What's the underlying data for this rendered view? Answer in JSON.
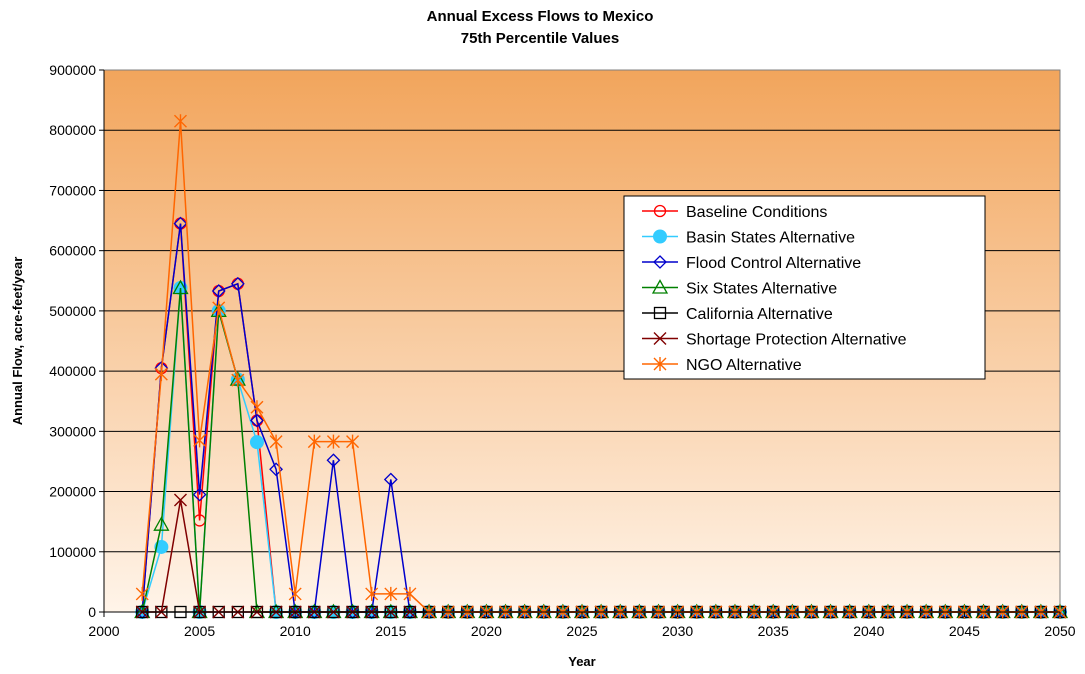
{
  "chart_data": {
    "type": "line",
    "title": "Annual Excess Flows to Mexico",
    "subtitle": "75th Percentile Values",
    "xlabel": "Year",
    "ylabel": "Annual Flow, acre-feet/year",
    "xlim": [
      2000,
      2050
    ],
    "ylim": [
      0,
      900000
    ],
    "xticks": [
      "2000",
      "2005",
      "2010",
      "2015",
      "2020",
      "2025",
      "2030",
      "2035",
      "2040",
      "2045",
      "2050"
    ],
    "yticks": [
      "0",
      "100000",
      "200000",
      "300000",
      "400000",
      "500000",
      "600000",
      "700000",
      "800000",
      "900000"
    ],
    "grid": "horizontal",
    "legend_position": "right",
    "plot_background": [
      "#f2a55c",
      "#fff4e9"
    ],
    "x": [
      2002,
      2003,
      2004,
      2005,
      2006,
      2007,
      2008,
      2009,
      2010,
      2011,
      2012,
      2013,
      2014,
      2015,
      2016,
      2017,
      2018,
      2019,
      2020,
      2021,
      2022,
      2023,
      2024,
      2025,
      2026,
      2027,
      2028,
      2029,
      2030,
      2031,
      2032,
      2033,
      2034,
      2035,
      2036,
      2037,
      2038,
      2039,
      2040,
      2041,
      2042,
      2043,
      2044,
      2045,
      2046,
      2047,
      2048,
      2049,
      2050
    ],
    "series": [
      {
        "name": "Baseline Conditions",
        "color": "#ff0000",
        "marker": "circle-open",
        "values": [
          0,
          405000,
          645000,
          152000,
          533000,
          545000,
          318000,
          0,
          0,
          0,
          0,
          0,
          0,
          0,
          0,
          0,
          0,
          0,
          0,
          0,
          0,
          0,
          0,
          0,
          0,
          0,
          0,
          0,
          0,
          0,
          0,
          0,
          0,
          0,
          0,
          0,
          0,
          0,
          0,
          0,
          0,
          0,
          0,
          0,
          0,
          0,
          0,
          0,
          0
        ]
      },
      {
        "name": "Basin States Alternative",
        "color": "#33ccff",
        "marker": "circle-filled",
        "values": [
          0,
          108000,
          538000,
          0,
          500000,
          386000,
          282000,
          0,
          0,
          0,
          0,
          0,
          0,
          0,
          0,
          0,
          0,
          0,
          0,
          0,
          0,
          0,
          0,
          0,
          0,
          0,
          0,
          0,
          0,
          0,
          0,
          0,
          0,
          0,
          0,
          0,
          0,
          0,
          0,
          0,
          0,
          0,
          0,
          0,
          0,
          0,
          0,
          0,
          0
        ]
      },
      {
        "name": "Flood Control Alternative",
        "color": "#0000cc",
        "marker": "diamond-open",
        "values": [
          0,
          405000,
          645000,
          195000,
          533000,
          545000,
          318000,
          237000,
          0,
          0,
          252000,
          0,
          0,
          220000,
          0,
          0,
          0,
          0,
          0,
          0,
          0,
          0,
          0,
          0,
          0,
          0,
          0,
          0,
          0,
          0,
          0,
          0,
          0,
          0,
          0,
          0,
          0,
          0,
          0,
          0,
          0,
          0,
          0,
          0,
          0,
          0,
          0,
          0,
          0
        ]
      },
      {
        "name": "Six States Alternative",
        "color": "#008000",
        "marker": "triangle-open",
        "values": [
          0,
          145000,
          538000,
          0,
          500000,
          386000,
          0,
          0,
          0,
          0,
          0,
          0,
          0,
          0,
          0,
          0,
          0,
          0,
          0,
          0,
          0,
          0,
          0,
          0,
          0,
          0,
          0,
          0,
          0,
          0,
          0,
          0,
          0,
          0,
          0,
          0,
          0,
          0,
          0,
          0,
          0,
          0,
          0,
          0,
          0,
          0,
          0,
          0,
          0
        ]
      },
      {
        "name": "California Alternative",
        "color": "#000000",
        "marker": "square-open",
        "values": [
          0,
          0,
          0,
          0,
          0,
          0,
          0,
          0,
          0,
          0,
          0,
          0,
          0,
          0,
          0,
          0,
          0,
          0,
          0,
          0,
          0,
          0,
          0,
          0,
          0,
          0,
          0,
          0,
          0,
          0,
          0,
          0,
          0,
          0,
          0,
          0,
          0,
          0,
          0,
          0,
          0,
          0,
          0,
          0,
          0,
          0,
          0,
          0,
          0
        ]
      },
      {
        "name": "Shortage Protection Alternative",
        "color": "#800000",
        "marker": "x",
        "values": [
          0,
          0,
          186000,
          0,
          0,
          0,
          0,
          0,
          0,
          0,
          0,
          0,
          0,
          0,
          0,
          0,
          0,
          0,
          0,
          0,
          0,
          0,
          0,
          0,
          0,
          0,
          0,
          0,
          0,
          0,
          0,
          0,
          0,
          0,
          0,
          0,
          0,
          0,
          0,
          0,
          0,
          0,
          0,
          0,
          0,
          0,
          0,
          0,
          0
        ]
      },
      {
        "name": "NGO Alternative",
        "color": "#ff6600",
        "marker": "asterisk",
        "values": [
          30000,
          395000,
          815000,
          285000,
          505000,
          385000,
          340000,
          283000,
          30000,
          283000,
          283000,
          283000,
          30000,
          30000,
          30000,
          0,
          0,
          0,
          0,
          0,
          0,
          0,
          0,
          0,
          0,
          0,
          0,
          0,
          0,
          0,
          0,
          0,
          0,
          0,
          0,
          0,
          0,
          0,
          0,
          0,
          0,
          0,
          0,
          0,
          0,
          0,
          0,
          0,
          0
        ]
      }
    ]
  }
}
